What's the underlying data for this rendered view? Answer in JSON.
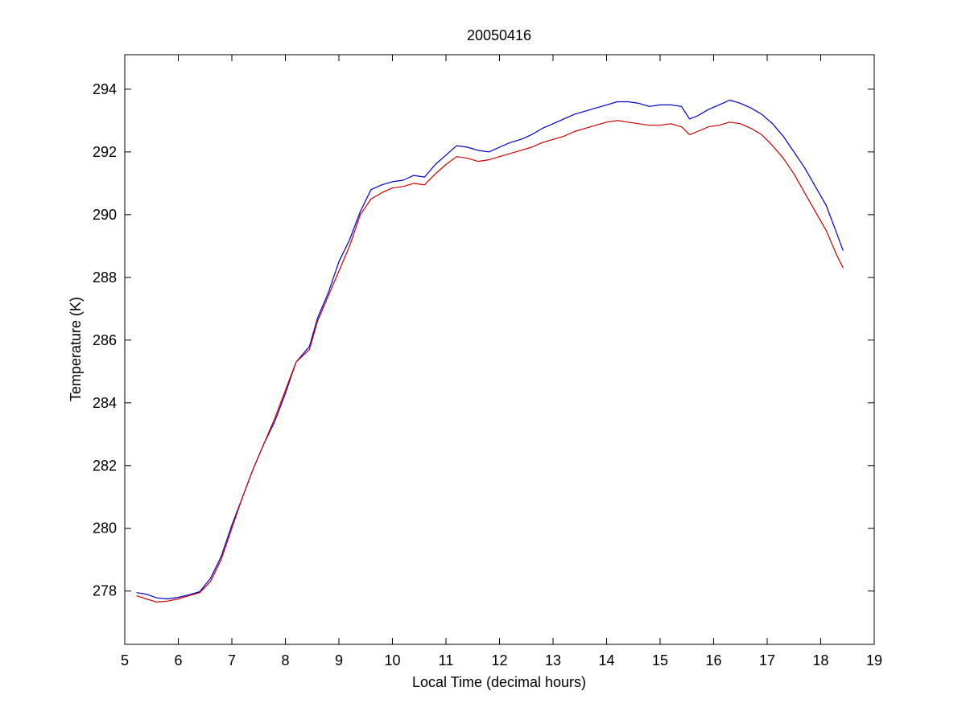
{
  "chart_data": {
    "type": "line",
    "title": "20050416",
    "xlabel": "Local Time (decimal hours)",
    "ylabel": "Temperature (K)",
    "xlim": [
      5,
      19
    ],
    "ylim": [
      276.3,
      295.1
    ],
    "xticks": [
      5,
      6,
      7,
      8,
      9,
      10,
      11,
      12,
      13,
      14,
      15,
      16,
      17,
      18,
      19
    ],
    "yticks": [
      278,
      280,
      282,
      284,
      286,
      288,
      290,
      292,
      294
    ],
    "grid": false,
    "legend": "none",
    "series": [
      {
        "color": "#0000cc",
        "x": [
          5.22,
          5.4,
          5.6,
          5.8,
          6.0,
          6.2,
          6.4,
          6.6,
          6.8,
          7.0,
          7.2,
          7.4,
          7.6,
          7.8,
          8.0,
          8.2,
          8.45,
          8.6,
          8.8,
          9.0,
          9.2,
          9.4,
          9.6,
          9.8,
          10.0,
          10.2,
          10.4,
          10.6,
          10.8,
          11.0,
          11.2,
          11.4,
          11.6,
          11.8,
          12.0,
          12.2,
          12.4,
          12.6,
          12.8,
          13.0,
          13.2,
          13.4,
          13.6,
          13.8,
          14.0,
          14.2,
          14.4,
          14.6,
          14.8,
          15.0,
          15.2,
          15.4,
          15.55,
          15.7,
          15.9,
          16.1,
          16.3,
          16.5,
          16.7,
          16.9,
          17.1,
          17.3,
          17.5,
          17.7,
          17.9,
          18.1,
          18.3,
          18.42
        ],
        "y": [
          277.95,
          277.9,
          277.78,
          277.75,
          277.8,
          277.88,
          277.98,
          278.4,
          279.1,
          280.1,
          281.0,
          281.9,
          282.7,
          283.4,
          284.3,
          285.3,
          285.8,
          286.7,
          287.5,
          288.5,
          289.2,
          290.1,
          290.8,
          290.95,
          291.05,
          291.1,
          291.25,
          291.2,
          291.6,
          291.9,
          292.2,
          292.15,
          292.05,
          292.0,
          292.15,
          292.3,
          292.4,
          292.55,
          292.75,
          292.9,
          293.05,
          293.2,
          293.3,
          293.4,
          293.5,
          293.6,
          293.6,
          293.55,
          293.45,
          293.5,
          293.5,
          293.45,
          293.05,
          293.15,
          293.35,
          293.5,
          293.65,
          293.55,
          293.4,
          293.2,
          292.9,
          292.5,
          292.0,
          291.5,
          290.9,
          290.3,
          289.4,
          288.85
        ]
      },
      {
        "color": "#cc0000",
        "x": [
          5.22,
          5.4,
          5.6,
          5.8,
          6.0,
          6.2,
          6.4,
          6.6,
          6.8,
          7.0,
          7.2,
          7.4,
          7.6,
          7.8,
          8.0,
          8.2,
          8.45,
          8.6,
          8.8,
          9.0,
          9.2,
          9.4,
          9.6,
          9.8,
          10.0,
          10.2,
          10.4,
          10.6,
          10.8,
          11.0,
          11.2,
          11.4,
          11.6,
          11.8,
          12.0,
          12.2,
          12.4,
          12.6,
          12.8,
          13.0,
          13.2,
          13.4,
          13.6,
          13.8,
          14.0,
          14.2,
          14.4,
          14.6,
          14.8,
          15.0,
          15.2,
          15.4,
          15.55,
          15.7,
          15.9,
          16.1,
          16.3,
          16.5,
          16.7,
          16.9,
          17.1,
          17.3,
          17.5,
          17.7,
          17.9,
          18.1,
          18.3,
          18.42
        ],
        "y": [
          277.85,
          277.75,
          277.65,
          277.68,
          277.75,
          277.85,
          277.95,
          278.3,
          279.0,
          280.0,
          281.0,
          281.9,
          282.7,
          283.5,
          284.4,
          285.3,
          285.7,
          286.6,
          287.4,
          288.2,
          289.0,
          290.0,
          290.5,
          290.7,
          290.85,
          290.9,
          291.0,
          290.95,
          291.3,
          291.6,
          291.85,
          291.8,
          291.7,
          291.75,
          291.85,
          291.95,
          292.05,
          292.15,
          292.3,
          292.4,
          292.5,
          292.65,
          292.75,
          292.85,
          292.95,
          293.0,
          292.95,
          292.9,
          292.85,
          292.85,
          292.9,
          292.8,
          292.55,
          292.65,
          292.8,
          292.85,
          292.95,
          292.9,
          292.75,
          292.55,
          292.2,
          291.8,
          291.3,
          290.7,
          290.1,
          289.5,
          288.7,
          288.3
        ]
      }
    ]
  }
}
